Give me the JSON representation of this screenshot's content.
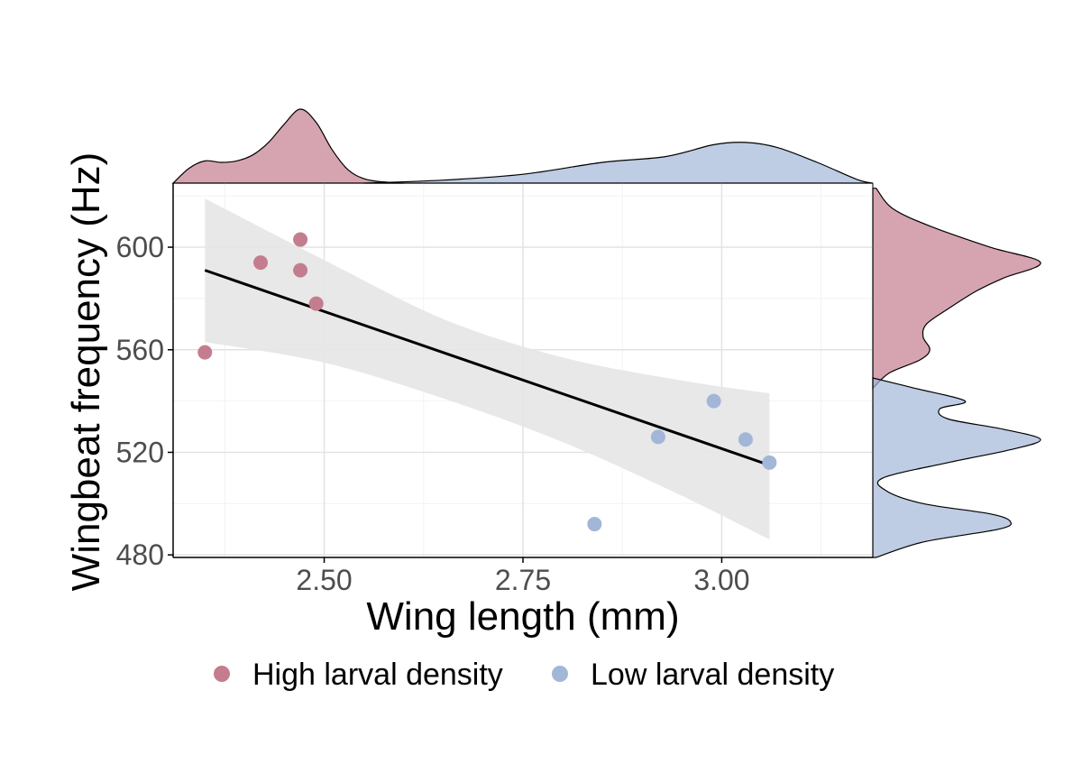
{
  "chart_data": {
    "type": "scatter",
    "title": "",
    "xlabel": "Wing length (mm)",
    "ylabel": "Wingbeat frequency (Hz)",
    "xlim": [
      2.31,
      3.19
    ],
    "ylim": [
      479,
      625
    ],
    "xticks": [
      2.5,
      2.75,
      3.0
    ],
    "xtick_labels": [
      "2.50",
      "2.75",
      "3.00"
    ],
    "yticks": [
      480,
      520,
      560,
      600
    ],
    "ytick_labels": [
      "480",
      "520",
      "560",
      "600"
    ],
    "grid": true,
    "legend_position": "bottom",
    "colors": {
      "high": "#c47d8e",
      "low": "#a2b6d8",
      "band": "#e6e6e6",
      "line": "#000000"
    },
    "series": [
      {
        "name": "High larval density",
        "color": "#c47d8e",
        "points": [
          {
            "x": 2.35,
            "y": 559
          },
          {
            "x": 2.42,
            "y": 594
          },
          {
            "x": 2.47,
            "y": 603
          },
          {
            "x": 2.47,
            "y": 591
          },
          {
            "x": 2.49,
            "y": 578
          }
        ]
      },
      {
        "name": "Low larval density",
        "color": "#a2b6d8",
        "points": [
          {
            "x": 2.84,
            "y": 492
          },
          {
            "x": 2.92,
            "y": 526
          },
          {
            "x": 2.99,
            "y": 540
          },
          {
            "x": 3.03,
            "y": 525
          },
          {
            "x": 3.06,
            "y": 516
          }
        ]
      }
    ],
    "regression": {
      "start": {
        "x": 2.35,
        "y": 591
      },
      "end": {
        "x": 3.06,
        "y": 515
      },
      "confidence_band": {
        "x": [
          2.35,
          2.5,
          2.65,
          2.8,
          2.95,
          3.06
        ],
        "lower": [
          563,
          555,
          541,
          524,
          503,
          486
        ],
        "upper": [
          619,
          595,
          572,
          557,
          548,
          543
        ]
      }
    },
    "marginal_x": {
      "High larval density": {
        "x": [
          2.31,
          2.33,
          2.35,
          2.37,
          2.39,
          2.41,
          2.43,
          2.45,
          2.47,
          2.49,
          2.51,
          2.53,
          2.55,
          2.57,
          2.6
        ],
        "density": [
          0.0,
          0.2,
          0.3,
          0.28,
          0.3,
          0.38,
          0.55,
          0.8,
          1.0,
          0.82,
          0.45,
          0.18,
          0.06,
          0.02,
          0.0
        ]
      },
      "Low larval density": {
        "x": [
          2.55,
          2.65,
          2.75,
          2.85,
          2.93,
          2.99,
          3.03,
          3.07,
          3.12,
          3.17,
          3.19
        ],
        "density": [
          0.0,
          0.04,
          0.12,
          0.28,
          0.36,
          0.52,
          0.55,
          0.48,
          0.28,
          0.05,
          0.0
        ]
      }
    },
    "marginal_y": {
      "High larval density": {
        "y": [
          545,
          551,
          556,
          560,
          565,
          570,
          576,
          583,
          588,
          594,
          600,
          608,
          615,
          623
        ],
        "density": [
          0.0,
          0.1,
          0.28,
          0.34,
          0.3,
          0.32,
          0.45,
          0.62,
          0.78,
          1.0,
          0.7,
          0.35,
          0.12,
          0.02
        ]
      },
      "Low larval density": {
        "y": [
          479,
          485,
          490,
          493,
          496,
          500,
          505,
          510,
          516,
          521,
          525,
          529,
          533,
          537,
          540,
          545,
          549
        ],
        "density": [
          0.02,
          0.3,
          0.75,
          0.82,
          0.7,
          0.3,
          0.08,
          0.06,
          0.45,
          0.82,
          1.0,
          0.78,
          0.45,
          0.4,
          0.55,
          0.25,
          0.0
        ]
      }
    }
  }
}
